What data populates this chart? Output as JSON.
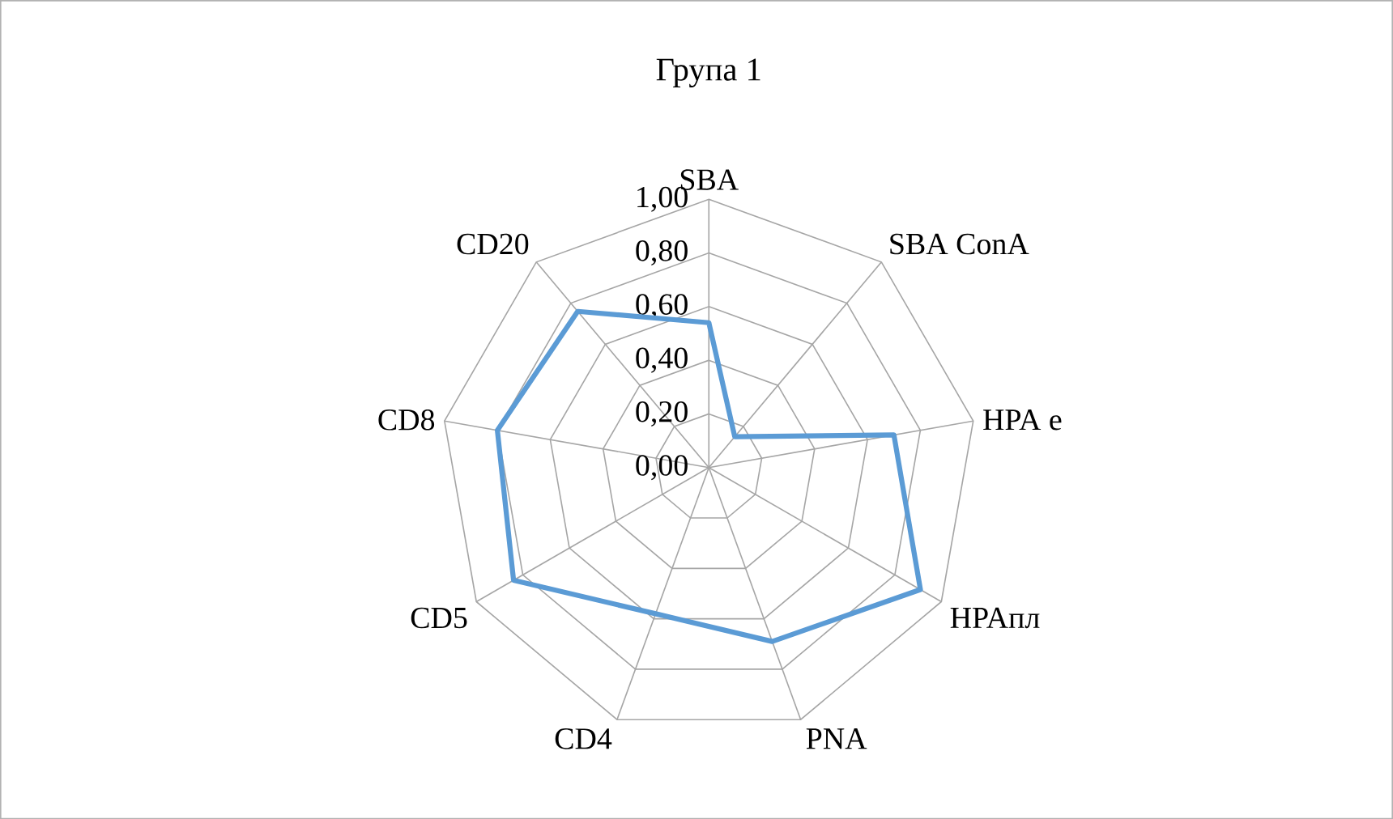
{
  "chart_data": {
    "type": "radar",
    "title": "Група 1",
    "categories": [
      "SBA",
      "SBA ConA",
      "HPA e",
      "HPAпл",
      "PNA",
      "CD4",
      "CD5",
      "CD8",
      "CD20"
    ],
    "series": [
      {
        "color": "#5b9bd5",
        "values": [
          0.54,
          0.15,
          0.7,
          0.91,
          0.69,
          0.58,
          0.84,
          0.8,
          0.76
        ]
      }
    ],
    "ylim": [
      0,
      1
    ],
    "yticks": [
      {
        "value": 0,
        "label": "0,00"
      },
      {
        "value": 0.2,
        "label": "0,20"
      },
      {
        "value": 0.4,
        "label": "0,40"
      },
      {
        "value": 0.6,
        "label": "0,60"
      },
      {
        "value": 0.8,
        "label": "0,80"
      },
      {
        "value": 1,
        "label": "1,00"
      }
    ],
    "grid": true
  }
}
